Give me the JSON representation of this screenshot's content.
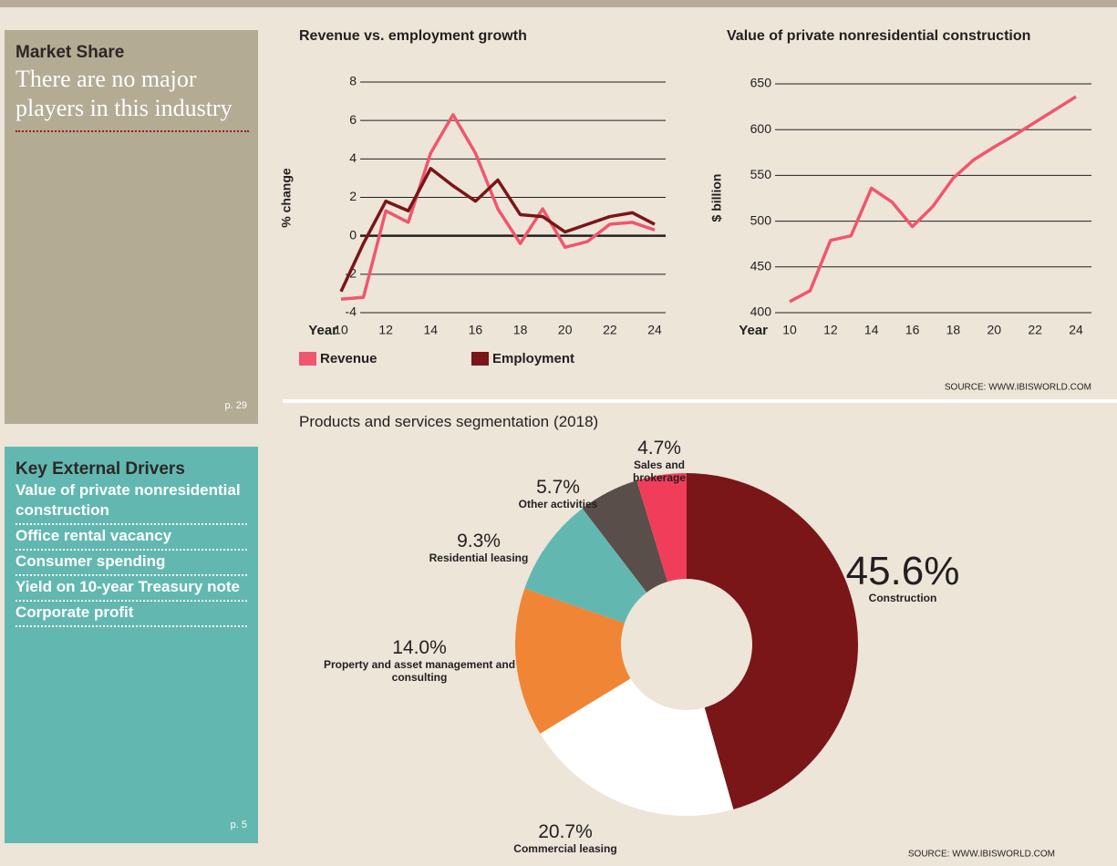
{
  "market_share": {
    "title": "Market Share",
    "text": "There are no major players in this industry",
    "page": "p. 29"
  },
  "key_external_drivers": {
    "title": "Key External Drivers",
    "items": [
      "Value of private nonresidential construction",
      "Office rental vacancy",
      "Consumer spending",
      "Yield on 10-year Treasury note",
      "Corporate profit"
    ],
    "page": "p. 5"
  },
  "chart_data": [
    {
      "type": "line",
      "title": "Revenue vs. employment growth",
      "ylabel": "% change",
      "xlabel": "Year",
      "x": [
        10,
        11,
        12,
        13,
        14,
        15,
        16,
        17,
        18,
        19,
        20,
        21,
        22,
        23,
        24
      ],
      "xlim": [
        10,
        24
      ],
      "xticks": [
        10,
        12,
        14,
        16,
        18,
        20,
        22,
        24
      ],
      "ylim": [
        -4,
        8
      ],
      "yticks": [
        -4,
        -2,
        0,
        2,
        4,
        6,
        8
      ],
      "grid": true,
      "series": [
        {
          "name": "Revenue",
          "color": "#f0566e",
          "values": [
            -3.3,
            -3.2,
            1.3,
            0.7,
            4.3,
            6.3,
            4.3,
            1.4,
            -0.4,
            1.4,
            -0.6,
            -0.3,
            0.6,
            0.7,
            0.3
          ]
        },
        {
          "name": "Employment",
          "color": "#7a1518",
          "values": [
            -2.9,
            -0.4,
            1.8,
            1.3,
            3.5,
            2.6,
            1.8,
            2.9,
            1.1,
            1.0,
            0.2,
            0.6,
            1.0,
            1.2,
            0.6
          ]
        }
      ]
    },
    {
      "type": "line",
      "title": "Value of private nonresidential construction",
      "ylabel": "$ billion",
      "xlabel": "Year",
      "x": [
        10,
        11,
        12,
        13,
        14,
        15,
        16,
        17,
        18,
        19,
        20,
        21,
        22,
        23,
        24
      ],
      "xlim": [
        10,
        24
      ],
      "xticks": [
        10,
        12,
        14,
        16,
        18,
        20,
        22,
        24
      ],
      "ylim": [
        400,
        650
      ],
      "yticks": [
        400,
        450,
        500,
        550,
        600,
        650
      ],
      "grid": true,
      "series": [
        {
          "name": "Value",
          "color": "#f0566e",
          "values": [
            412,
            424,
            479,
            484,
            536,
            521,
            494,
            516,
            547,
            567,
            581,
            594,
            608,
            622,
            636
          ]
        }
      ],
      "source": "SOURCE: WWW.IBISWORLD.COM"
    },
    {
      "type": "donut",
      "title": "Products and services segmentation",
      "subtitle": "(2018)",
      "categories": [
        "Construction",
        "Commercial leasing",
        "Property and asset management and consulting",
        "Residential leasing",
        "Other activities",
        "Sales and brokerage"
      ],
      "values": [
        45.6,
        20.7,
        14.0,
        9.3,
        5.7,
        4.7
      ],
      "value_labels": [
        "45.6%",
        "20.7%",
        "14.0%",
        "9.3%",
        "5.7%",
        "4.7%"
      ],
      "colors": [
        "#7a1518",
        "#ffffff",
        "#f08535",
        "#62b8b0",
        "#5a4e4a",
        "#f03e5a"
      ],
      "source": "SOURCE: WWW.IBISWORLD.COM"
    }
  ]
}
